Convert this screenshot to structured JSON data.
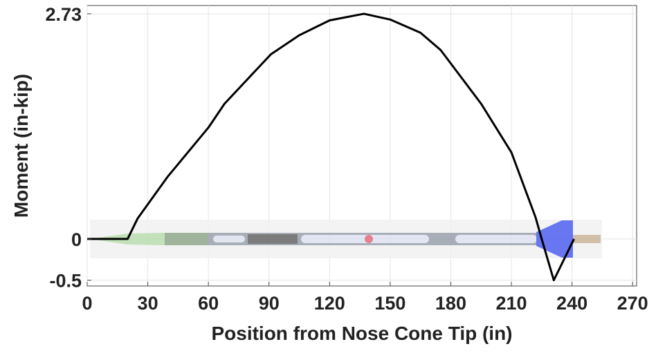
{
  "chart_data": {
    "type": "line",
    "x_label": "Position from Nose Cone Tip (in)",
    "y_label": "Moment (in-kip)",
    "series": [
      {
        "color": "#000000",
        "x": [
          0,
          20,
          25,
          40,
          60,
          68,
          91,
          105,
          120,
          137,
          150,
          165,
          175,
          195,
          210,
          222,
          225,
          231,
          241
        ],
        "values": [
          0,
          0,
          0.25,
          0.76,
          1.35,
          1.64,
          2.24,
          2.47,
          2.65,
          2.73,
          2.66,
          2.5,
          2.29,
          1.64,
          1.05,
          0.26,
          0,
          -0.5,
          0
        ]
      }
    ],
    "xlim": [
      0,
      272
    ],
    "ylim": [
      -0.57,
      2.83
    ],
    "xticks": [
      0,
      30,
      60,
      90,
      120,
      150,
      180,
      210,
      240,
      270
    ],
    "yticks": [
      -0.5,
      0,
      2.73
    ],
    "grid": true
  }
}
